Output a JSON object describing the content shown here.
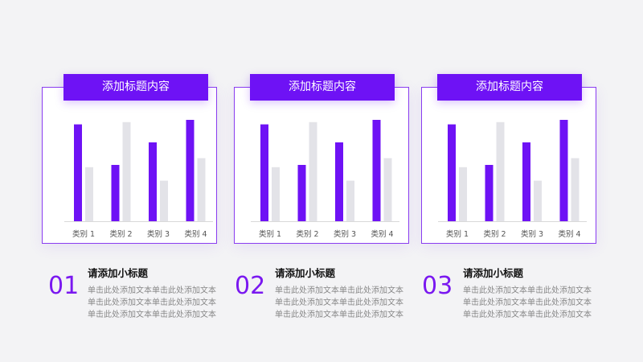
{
  "colors": {
    "accent": "#6e12f5",
    "secondary": "#e3e3e8",
    "border": "#8a3cf0"
  },
  "panels": [
    {
      "title": "添加标题内容",
      "number": "01",
      "subtitle": "请添加小标题",
      "desc": [
        "单击此处添加文本单击此处添加文本",
        "单击此处添加文本单击此处添加文本",
        "单击此处添加文本单击此处添加文本"
      ]
    },
    {
      "title": "添加标题内容",
      "number": "02",
      "subtitle": "请添加小标题",
      "desc": [
        "单击此处添加文本单击此处添加文本",
        "单击此处添加文本单击此处添加文本",
        "单击此处添加文本单击此处添加文本"
      ]
    },
    {
      "title": "添加标题内容",
      "number": "03",
      "subtitle": "请添加小标题",
      "desc": [
        "单击此处添加文本单击此处添加文本",
        "单击此处添加文本单击此处添加文本",
        "单击此处添加文本单击此处添加文本"
      ]
    }
  ],
  "chart_data": [
    {
      "type": "bar",
      "categories": [
        "类别 1",
        "类别 2",
        "类别 3",
        "类别 4"
      ],
      "series": [
        {
          "values": [
            4.3,
            2.5,
            3.5,
            4.5
          ]
        },
        {
          "values": [
            2.4,
            4.4,
            1.8,
            2.8
          ]
        }
      ],
      "ylim": [
        0,
        5
      ],
      "grid": false,
      "legend": "none"
    },
    {
      "type": "bar",
      "categories": [
        "类别 1",
        "类别 2",
        "类别 3",
        "类别 4"
      ],
      "series": [
        {
          "values": [
            4.3,
            2.5,
            3.5,
            4.5
          ]
        },
        {
          "values": [
            2.4,
            4.4,
            1.8,
            2.8
          ]
        }
      ],
      "ylim": [
        0,
        5
      ],
      "grid": false,
      "legend": "none"
    },
    {
      "type": "bar",
      "categories": [
        "类别 1",
        "类别 2",
        "类别 3",
        "类别 4"
      ],
      "series": [
        {
          "values": [
            4.3,
            2.5,
            3.5,
            4.5
          ]
        },
        {
          "values": [
            2.4,
            4.4,
            1.8,
            2.8
          ]
        }
      ],
      "ylim": [
        0,
        5
      ],
      "grid": false,
      "legend": "none"
    }
  ]
}
